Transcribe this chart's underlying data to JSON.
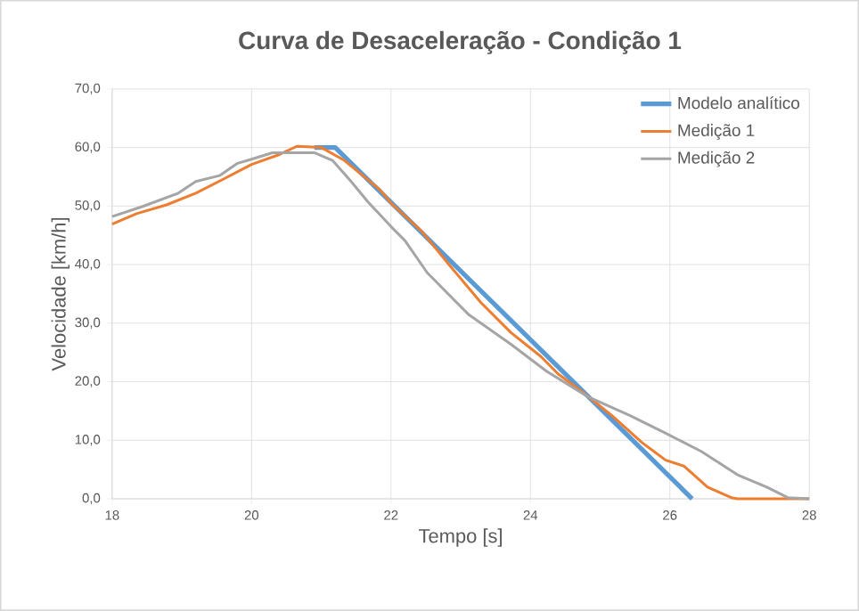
{
  "chart_data": {
    "type": "line",
    "title": "Curva de Desaceleração - Condição 1",
    "xlabel": "Tempo [s]",
    "ylabel": "Velocidade [km/h]",
    "xlim": [
      18,
      28
    ],
    "xticks": [
      18,
      20,
      22,
      24,
      26,
      28
    ],
    "ylim": [
      0,
      70
    ],
    "yticks": [
      {
        "value": 0,
        "label": "0,0"
      },
      {
        "value": 10,
        "label": "10,0"
      },
      {
        "value": 20,
        "label": "20,0"
      },
      {
        "value": 30,
        "label": "30,0"
      },
      {
        "value": 40,
        "label": "40,0"
      },
      {
        "value": 50,
        "label": "50,0"
      },
      {
        "value": 60,
        "label": "60,0"
      },
      {
        "value": 70,
        "label": "70,0"
      }
    ],
    "grid": true,
    "legend": "top right",
    "marker": "none",
    "line_style": "solid",
    "series": [
      {
        "name": "Modelo analítico",
        "color": "#5b9bd5",
        "x": [
          20.9,
          21.2,
          26.32
        ],
        "values": [
          60,
          60,
          0
        ]
      },
      {
        "name": "Medição 1",
        "color": "#ed7d31",
        "x": [
          18.0,
          18.35,
          18.78,
          19.2,
          19.63,
          20.0,
          20.4,
          20.65,
          21.0,
          21.33,
          21.84,
          22.0,
          22.44,
          22.86,
          23.29,
          23.72,
          24.15,
          24.4,
          24.74,
          25.17,
          25.6,
          25.94,
          26.2,
          26.54,
          26.88,
          26.97,
          28.0
        ],
        "values": [
          46.9,
          48.7,
          50.2,
          52.2,
          54.8,
          57.1,
          58.8,
          60.2,
          60.0,
          57.8,
          52.8,
          50.5,
          45.7,
          39.6,
          33.5,
          28.4,
          24.3,
          21.3,
          18.3,
          14.2,
          9.6,
          6.6,
          5.6,
          2.0,
          0.2,
          0,
          0
        ]
      },
      {
        "name": "Medição 2",
        "color": "#a5a5a5",
        "x": [
          18.0,
          18.43,
          18.95,
          19.2,
          19.54,
          19.8,
          20.0,
          20.3,
          20.9,
          21.16,
          21.42,
          21.67,
          22.0,
          22.2,
          22.52,
          23.12,
          23.72,
          24.23,
          24.83,
          25.43,
          25.94,
          26.45,
          26.97,
          27.39,
          27.69,
          28.0
        ],
        "values": [
          48.2,
          49.9,
          52.2,
          54.2,
          55.2,
          57.3,
          58.0,
          59.1,
          59.1,
          57.8,
          54.3,
          50.7,
          46.5,
          44.1,
          38.6,
          31.4,
          26.4,
          21.8,
          17.4,
          14.2,
          11.2,
          8.1,
          4.1,
          2.0,
          0.2,
          0
        ]
      }
    ]
  }
}
